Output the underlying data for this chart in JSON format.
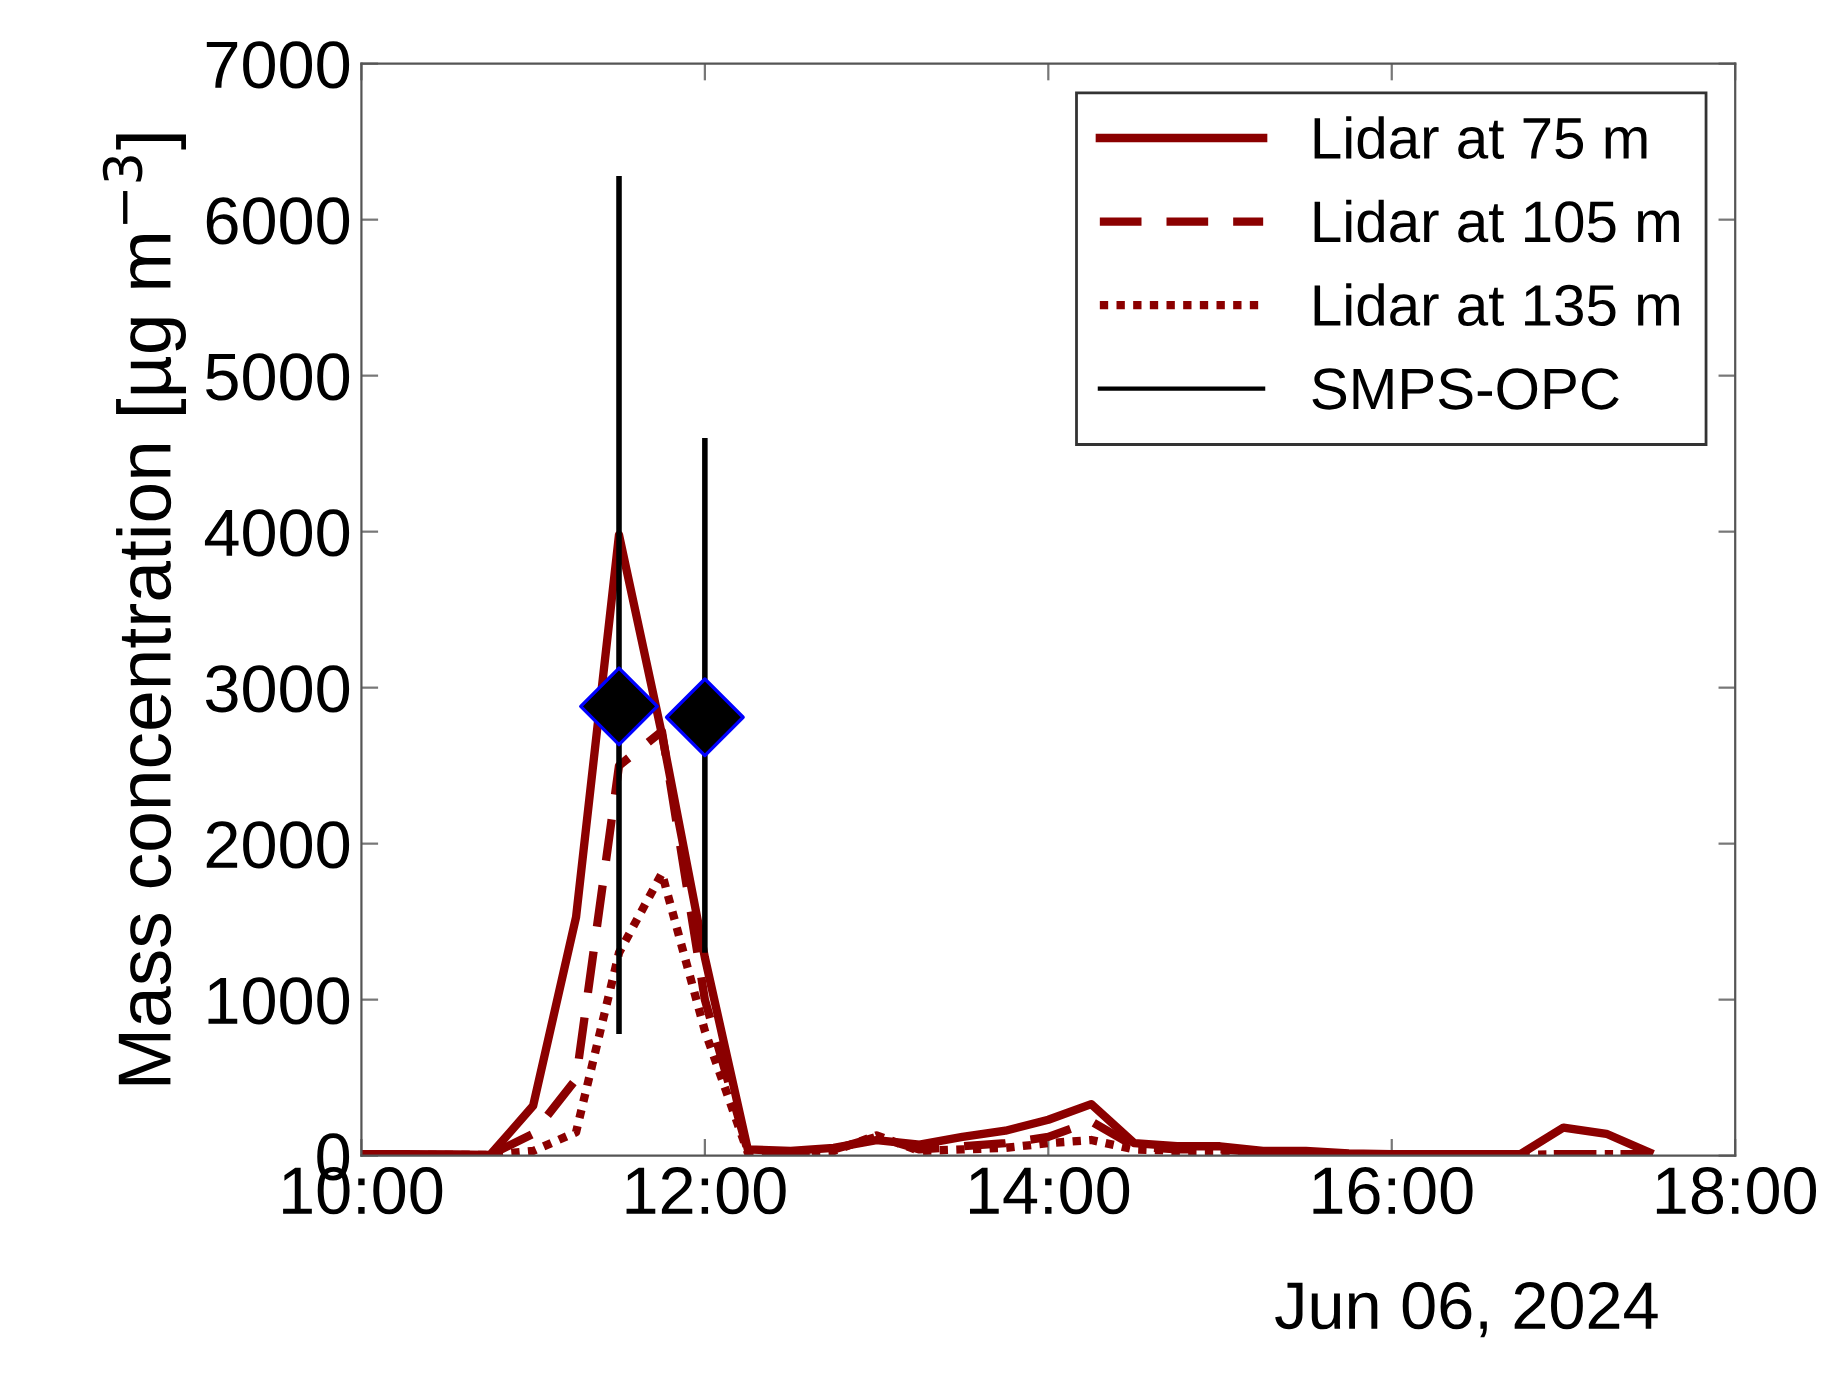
{
  "chart_data": {
    "type": "line",
    "ylabel": "Mass concentration [µg m$^{−3}$]",
    "x": [
      "2024-06-06T10:00",
      "2024-06-06T10:15",
      "2024-06-06T10:30",
      "2024-06-06T10:45",
      "2024-06-06T11:00",
      "2024-06-06T11:15",
      "2024-06-06T11:30",
      "2024-06-06T11:45",
      "2024-06-06T12:00",
      "2024-06-06T12:15",
      "2024-06-06T12:30",
      "2024-06-06T12:45",
      "2024-06-06T13:00",
      "2024-06-06T13:15",
      "2024-06-06T13:30",
      "2024-06-06T13:45",
      "2024-06-06T14:00",
      "2024-06-06T14:15",
      "2024-06-06T14:30",
      "2024-06-06T14:45",
      "2024-06-06T15:00",
      "2024-06-06T15:15",
      "2024-06-06T15:30",
      "2024-06-06T15:45",
      "2024-06-06T16:00",
      "2024-06-06T16:15",
      "2024-06-06T16:30",
      "2024-06-06T16:45",
      "2024-06-06T17:00",
      "2024-06-06T17:15",
      "2024-06-06T17:30"
    ],
    "series": [
      {
        "name": "Lidar at 75 m",
        "color": "#8b0000",
        "line_style": "solid",
        "values": [
          10,
          10,
          8,
          5,
          320,
          1530,
          3980,
          2700,
          1270,
          40,
          30,
          50,
          100,
          70,
          120,
          160,
          230,
          330,
          80,
          60,
          60,
          30,
          30,
          15,
          10,
          10,
          10,
          10,
          180,
          140,
          20
        ]
      },
      {
        "name": "Lidar at 105 m",
        "color": "#8b0000",
        "line_style": "dashed",
        "values": [
          5,
          5,
          5,
          5,
          140,
          490,
          2500,
          2720,
          1000,
          30,
          20,
          40,
          120,
          40,
          60,
          80,
          120,
          220,
          60,
          40,
          40,
          20,
          20,
          10,
          5,
          5,
          5,
          5,
          10,
          10,
          10
        ]
      },
      {
        "name": "Lidar at 135 m",
        "color": "#8b0000",
        "line_style": "dotted",
        "values": [
          5,
          5,
          5,
          5,
          30,
          150,
          1300,
          1810,
          800,
          20,
          15,
          30,
          130,
          30,
          40,
          50,
          80,
          100,
          40,
          30,
          30,
          15,
          15,
          10,
          5,
          5,
          5,
          5,
          10,
          10,
          10
        ]
      },
      {
        "name": "SMPS-OPC",
        "type": "scatter",
        "color": "#000000",
        "marker": "diamond",
        "x": [
          "2024-06-06T11:30",
          "2024-06-06T12:00"
        ],
        "values": [
          2880,
          2810
        ],
        "errors": [
          [
            780,
            6280
          ],
          [
            1300,
            4600
          ]
        ]
      }
    ],
    "xlim": [
      "2024-06-06T10:00",
      "2024-06-06T18:00"
    ],
    "xticks": [
      {
        "value": "2024-06-06T10:00",
        "label": "10:00"
      },
      {
        "value": "2024-06-06T12:00",
        "label": "12:00"
      },
      {
        "value": "2024-06-06T14:00",
        "label": "14:00"
      },
      {
        "value": "2024-06-06T16:00",
        "label": "16:00"
      },
      {
        "value": "2024-06-06T18:00",
        "label": "18:00"
      }
    ],
    "ylim": [
      0,
      7000
    ],
    "yticks": [
      0,
      1000,
      2000,
      3000,
      4000,
      5000,
      6000,
      7000
    ],
    "annotations": [
      "Jun 06, 2024"
    ],
    "grid": false,
    "legend": "top right"
  }
}
